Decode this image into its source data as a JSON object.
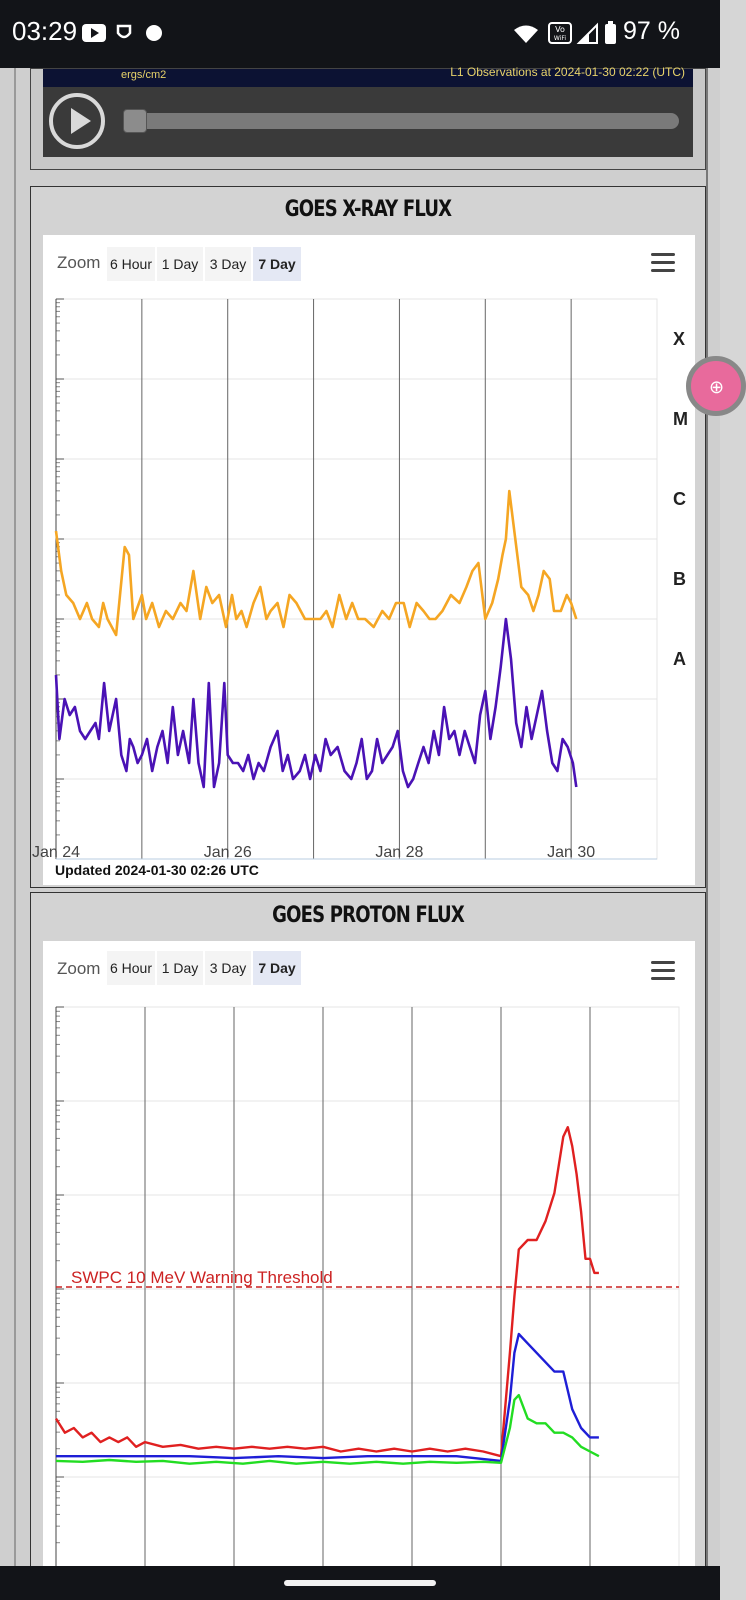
{
  "status_bar": {
    "time": "03:29",
    "battery": "97 %",
    "network_badge": "Vo WiFi",
    "icons": [
      "youtube-icon",
      "shield-app-icon",
      "circle-dot-icon",
      "wifi-icon",
      "vowifi-icon",
      "cell-signal-icon",
      "battery-icon"
    ]
  },
  "video": {
    "caption_left": "ergs/cm2",
    "caption_right": "L1 Observations at 2024-01-30 02:22 (UTC)",
    "progress": 0
  },
  "xray": {
    "title": "GOES X-RAY FLUX",
    "zoom_label": "Zoom",
    "zoom_options": [
      "6 Hour",
      "1 Day",
      "3 Day",
      "7 Day"
    ],
    "active_zoom": "7 Day",
    "updated": "Updated 2024-01-30 02:26 UTC"
  },
  "proton": {
    "title": "GOES PROTON FLUX",
    "zoom_label": "Zoom",
    "zoom_options": [
      "6 Hour",
      "1 Day",
      "3 Day",
      "7 Day"
    ],
    "active_zoom": "7 Day",
    "threshold_label": "SWPC 10 MeV Warning Threshold"
  },
  "colors": {
    "xray_long": "#f5a623",
    "xray_short": "#4a12b5",
    "xray_short_alt": "#2222cc",
    "xray_long_alt": "#e02020",
    "proton_10": "#e02020",
    "proton_50": "#1e1ed6",
    "proton_100": "#22dd22",
    "threshold": "#cc2222"
  },
  "chart_data": [
    {
      "type": "line",
      "title": "GOES X-RAY FLUX",
      "x_tick_labels": [
        "Jan 24",
        "Jan 26",
        "Jan 28",
        "Jan 30"
      ],
      "x_range_days": [
        0,
        7
      ],
      "y_scale": "log",
      "y_class_labels": [
        "X",
        "M",
        "C",
        "B",
        "A"
      ],
      "y_range_class": [
        -1,
        6
      ],
      "series": [
        {
          "key": "long",
          "x": [
            0.0,
            0.06,
            0.12,
            0.2,
            0.28,
            0.36,
            0.42,
            0.5,
            0.55,
            0.6,
            0.7,
            0.8,
            0.85,
            0.9,
            1.0,
            1.05,
            1.12,
            1.2,
            1.28,
            1.36,
            1.45,
            1.52,
            1.6,
            1.68,
            1.75,
            1.82,
            1.9,
            1.98,
            2.05,
            2.1,
            2.16,
            2.22,
            2.3,
            2.38,
            2.45,
            2.5,
            2.58,
            2.65,
            2.72,
            2.8,
            2.9,
            3.0,
            3.08,
            3.15,
            3.22,
            3.3,
            3.38,
            3.45,
            3.52,
            3.6,
            3.7,
            3.8,
            3.88,
            3.96,
            4.05,
            4.12,
            4.2,
            4.28,
            4.35,
            4.42,
            4.5,
            4.6,
            4.7,
            4.78,
            4.85,
            4.92,
            5.0,
            5.08,
            5.15,
            5.2,
            5.24,
            5.28,
            5.35,
            5.42,
            5.5,
            5.56,
            5.62,
            5.68,
            5.75,
            5.8,
            5.88,
            5.95,
            6.0,
            6.06
          ],
          "y": [
            3.1,
            2.6,
            2.3,
            2.2,
            2.0,
            2.2,
            2.0,
            1.9,
            2.2,
            2.0,
            1.8,
            2.9,
            2.8,
            2.0,
            2.3,
            2.0,
            2.2,
            1.9,
            2.1,
            2.0,
            2.2,
            2.1,
            2.6,
            2.0,
            2.4,
            2.2,
            2.3,
            1.9,
            2.3,
            2.0,
            2.1,
            1.9,
            2.2,
            2.4,
            2.0,
            2.1,
            2.2,
            1.9,
            2.3,
            2.2,
            2.0,
            2.0,
            2.0,
            2.1,
            1.9,
            2.3,
            2.0,
            2.2,
            2.0,
            2.0,
            1.9,
            2.1,
            2.0,
            2.2,
            2.2,
            1.9,
            2.2,
            2.1,
            2.0,
            2.0,
            2.1,
            2.3,
            2.2,
            2.4,
            2.6,
            2.7,
            2.0,
            2.2,
            2.5,
            2.8,
            3.0,
            3.6,
            3.0,
            2.4,
            2.3,
            2.1,
            2.3,
            2.6,
            2.5,
            2.1,
            2.1,
            2.3,
            2.2,
            2.0
          ],
          "color_key": "xray_long"
        },
        {
          "key": "short",
          "x": [
            0.0,
            0.04,
            0.1,
            0.16,
            0.22,
            0.28,
            0.34,
            0.4,
            0.46,
            0.5,
            0.56,
            0.62,
            0.7,
            0.76,
            0.82,
            0.86,
            0.9,
            0.95,
            1.0,
            1.06,
            1.12,
            1.18,
            1.24,
            1.3,
            1.36,
            1.42,
            1.48,
            1.55,
            1.6,
            1.66,
            1.72,
            1.78,
            1.84,
            1.9,
            1.96,
            2.0,
            2.06,
            2.12,
            2.18,
            2.24,
            2.3,
            2.36,
            2.42,
            2.5,
            2.58,
            2.64,
            2.7,
            2.76,
            2.84,
            2.9,
            2.96,
            3.02,
            3.08,
            3.14,
            3.2,
            3.28,
            3.36,
            3.44,
            3.5,
            3.56,
            3.62,
            3.68,
            3.74,
            3.8,
            3.86,
            3.92,
            3.98,
            4.04,
            4.1,
            4.16,
            4.22,
            4.28,
            4.34,
            4.4,
            4.46,
            4.52,
            4.58,
            4.64,
            4.7,
            4.76,
            4.82,
            4.88,
            4.94,
            5.0,
            5.06,
            5.12,
            5.18,
            5.24,
            5.3,
            5.36,
            5.42,
            5.48,
            5.54,
            5.6,
            5.66,
            5.72,
            5.78,
            5.84,
            5.9,
            5.96,
            6.02,
            6.06
          ],
          "y": [
            1.3,
            0.5,
            1.0,
            0.8,
            0.9,
            0.6,
            0.5,
            0.6,
            0.7,
            0.5,
            1.2,
            0.6,
            1.0,
            0.3,
            0.1,
            0.5,
            0.4,
            0.2,
            0.3,
            0.5,
            0.1,
            0.4,
            0.6,
            0.2,
            0.9,
            0.3,
            0.6,
            0.2,
            1.0,
            0.2,
            -0.1,
            1.2,
            -0.1,
            0.2,
            1.2,
            0.3,
            0.2,
            0.2,
            0.1,
            0.3,
            0.0,
            0.2,
            0.1,
            0.4,
            0.6,
            0.1,
            0.3,
            0.0,
            0.1,
            0.3,
            0.0,
            0.3,
            0.1,
            0.5,
            0.3,
            0.4,
            0.1,
            0.0,
            0.2,
            0.5,
            0.0,
            0.1,
            0.5,
            0.2,
            0.3,
            0.4,
            0.6,
            0.1,
            -0.1,
            0.0,
            0.2,
            0.4,
            0.2,
            0.6,
            0.3,
            0.9,
            0.5,
            0.6,
            0.3,
            0.6,
            0.4,
            0.2,
            0.8,
            1.1,
            0.5,
            0.9,
            1.4,
            2.0,
            1.5,
            0.7,
            0.4,
            0.9,
            0.5,
            0.8,
            1.1,
            0.6,
            0.2,
            0.1,
            0.5,
            0.4,
            0.2,
            -0.1
          ],
          "color_key": "xray_short"
        }
      ]
    },
    {
      "type": "line",
      "title": "GOES PROTON FLUX",
      "y_scale": "log",
      "threshold": {
        "label": "SWPC 10 MeV Warning Threshold",
        "value_log": 1
      },
      "x_range_days": [
        0,
        7
      ],
      "y_range_log": [
        -4,
        5
      ],
      "series": [
        {
          "key": "p10",
          "x": [
            0.0,
            0.1,
            0.2,
            0.3,
            0.4,
            0.5,
            0.6,
            0.7,
            0.8,
            0.9,
            1.0,
            1.2,
            1.4,
            1.6,
            1.8,
            2.0,
            2.2,
            2.4,
            2.6,
            2.8,
            3.0,
            3.2,
            3.4,
            3.6,
            3.8,
            4.0,
            4.2,
            4.4,
            4.6,
            4.8,
            5.0,
            5.1,
            5.15,
            5.2,
            5.3,
            5.4,
            5.5,
            5.6,
            5.7,
            5.75,
            5.8,
            5.85,
            5.9,
            5.95,
            6.0,
            6.05,
            6.1
          ],
          "y": [
            -0.4,
            -0.55,
            -0.5,
            -0.6,
            -0.55,
            -0.65,
            -0.6,
            -0.65,
            -0.6,
            -0.7,
            -0.65,
            -0.7,
            -0.68,
            -0.72,
            -0.7,
            -0.72,
            -0.7,
            -0.72,
            -0.7,
            -0.72,
            -0.7,
            -0.75,
            -0.72,
            -0.75,
            -0.72,
            -0.75,
            -0.72,
            -0.75,
            -0.72,
            -0.75,
            -0.8,
            0.3,
            0.9,
            1.4,
            1.5,
            1.5,
            1.7,
            2.0,
            2.6,
            2.7,
            2.5,
            2.2,
            1.8,
            1.3,
            1.3,
            1.15,
            1.15
          ],
          "color_key": "proton_10"
        },
        {
          "key": "p50",
          "x": [
            0.0,
            0.5,
            1.0,
            1.5,
            2.0,
            2.5,
            3.0,
            3.5,
            4.0,
            4.5,
            5.0,
            5.1,
            5.15,
            5.2,
            5.3,
            5.4,
            5.5,
            5.6,
            5.7,
            5.8,
            5.9,
            6.0,
            6.1
          ],
          "y": [
            -0.8,
            -0.8,
            -0.8,
            -0.8,
            -0.82,
            -0.8,
            -0.82,
            -0.8,
            -0.8,
            -0.8,
            -0.85,
            -0.2,
            0.3,
            0.5,
            0.4,
            0.3,
            0.2,
            0.1,
            0.1,
            -0.3,
            -0.5,
            -0.6,
            -0.6
          ],
          "color_key": "proton_50"
        },
        {
          "key": "p100",
          "x": [
            0.0,
            0.3,
            0.6,
            0.9,
            1.2,
            1.5,
            1.8,
            2.1,
            2.4,
            2.7,
            3.0,
            3.3,
            3.6,
            3.9,
            4.2,
            4.5,
            4.8,
            5.0,
            5.1,
            5.15,
            5.2,
            5.3,
            5.4,
            5.5,
            5.6,
            5.7,
            5.8,
            5.9,
            6.0,
            6.1
          ],
          "y": [
            -0.85,
            -0.86,
            -0.84,
            -0.86,
            -0.85,
            -0.88,
            -0.86,
            -0.88,
            -0.85,
            -0.88,
            -0.86,
            -0.88,
            -0.86,
            -0.88,
            -0.86,
            -0.87,
            -0.86,
            -0.87,
            -0.5,
            -0.2,
            -0.15,
            -0.4,
            -0.45,
            -0.45,
            -0.55,
            -0.55,
            -0.6,
            -0.7,
            -0.75,
            -0.8
          ],
          "color_key": "proton_100"
        }
      ]
    }
  ]
}
